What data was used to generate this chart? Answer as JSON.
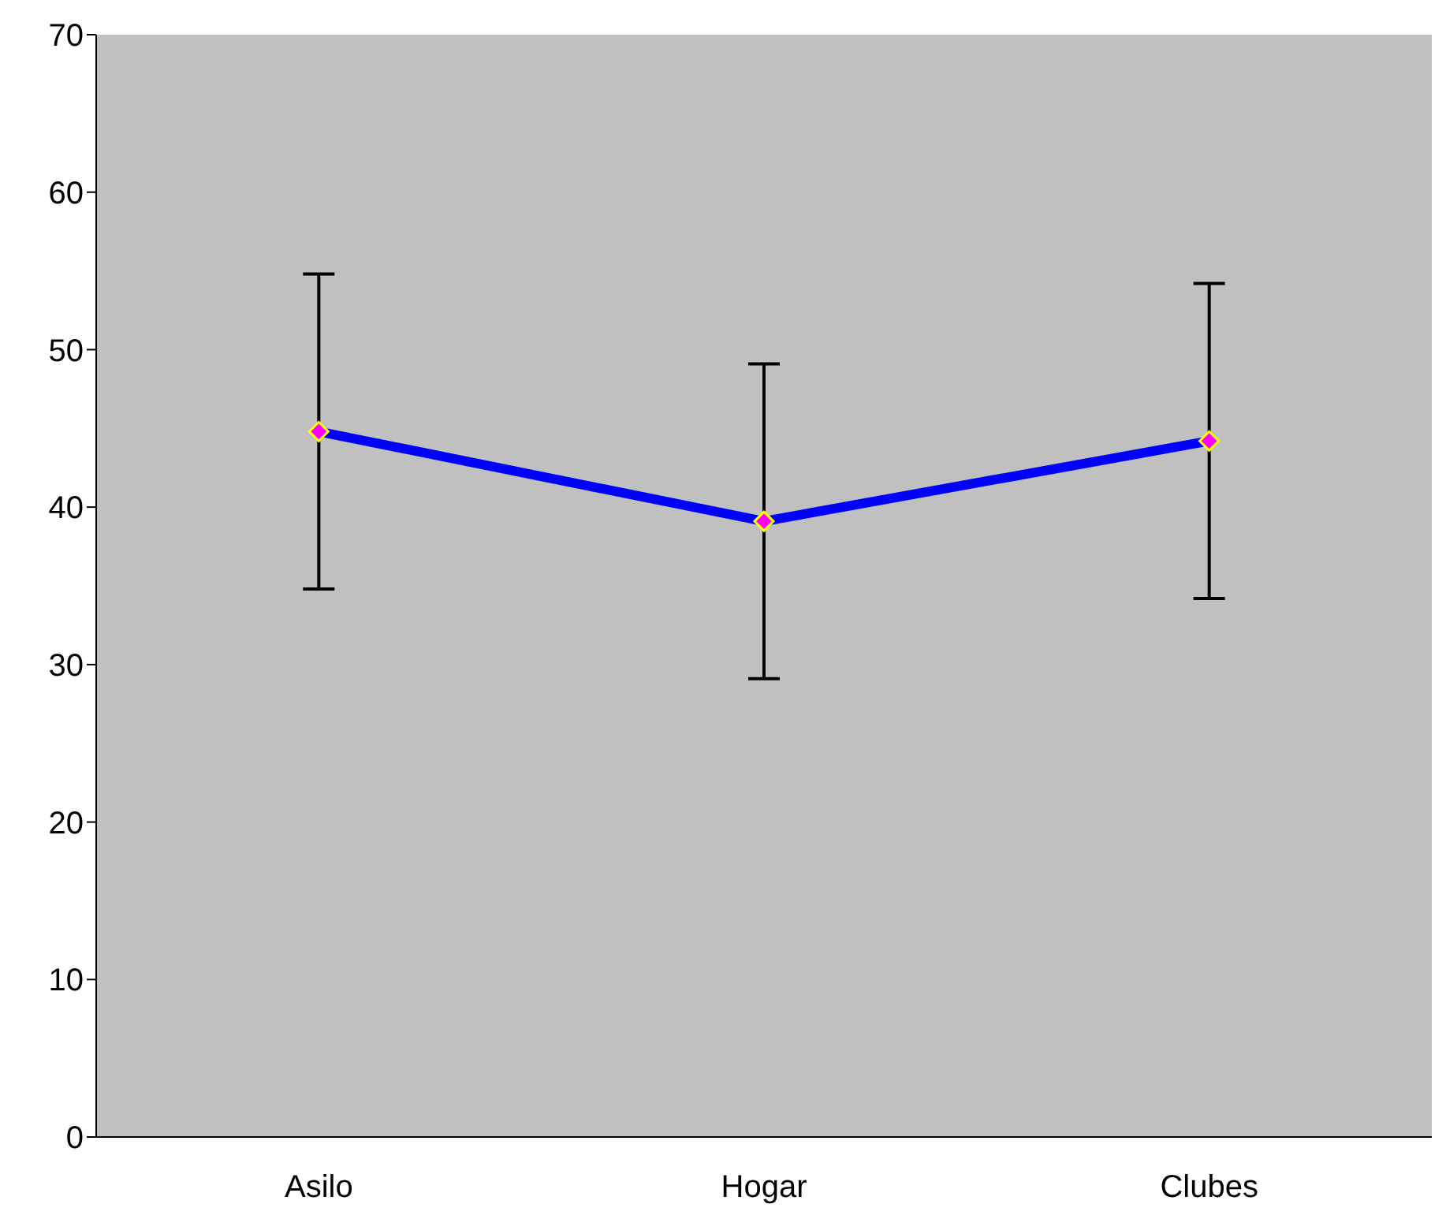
{
  "chart_data": {
    "type": "line",
    "categories": [
      "Asilo",
      "Hogar",
      "Clubes"
    ],
    "series": [
      {
        "color": "#0000ff",
        "values": [
          44.8,
          39.1,
          44.2
        ],
        "errors": [
          10,
          10,
          10
        ]
      }
    ],
    "ylim": [
      0,
      70
    ],
    "yticks": [
      0,
      10,
      20,
      30,
      40,
      50,
      60,
      70
    ],
    "grid": false,
    "legend": false,
    "marker": "diamond",
    "line_style": "solid"
  }
}
